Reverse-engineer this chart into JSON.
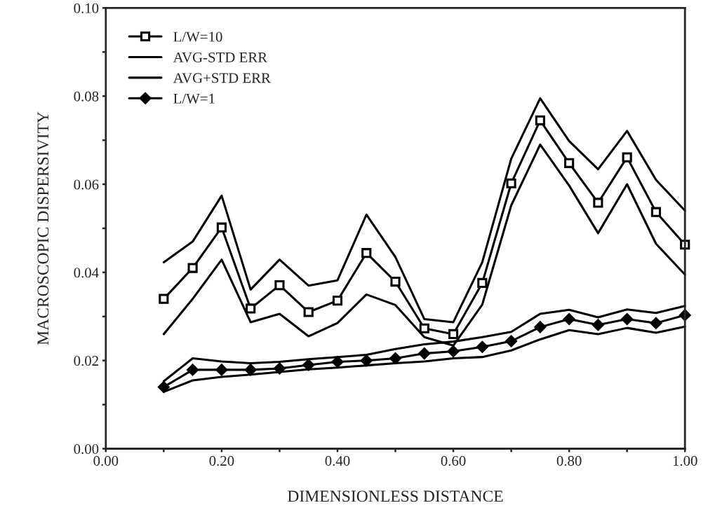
{
  "chart_data": {
    "type": "line",
    "xlabel": "DIMENSIONLESS DISTANCE",
    "ylabel": "MACROSCOPIC DISPERSIVITY",
    "x": [
      0.1,
      0.15,
      0.2,
      0.25,
      0.3,
      0.35,
      0.4,
      0.45,
      0.5,
      0.55,
      0.6,
      0.65,
      0.7,
      0.75,
      0.8,
      0.85,
      0.9,
      0.95,
      1.0
    ],
    "series": [
      {
        "name": "L/W=10",
        "color": "#000000",
        "marker": "square",
        "values": [
          0.034,
          0.041,
          0.0502,
          0.0318,
          0.0371,
          0.031,
          0.0336,
          0.0444,
          0.0379,
          0.0273,
          0.026,
          0.0376,
          0.0602,
          0.0745,
          0.0648,
          0.0558,
          0.0661,
          0.0537,
          0.0463
        ]
      },
      {
        "name": "AVG-STD ERR",
        "color": "#000000",
        "marker": "none",
        "values": [
          0.026,
          0.034,
          0.0429,
          0.0287,
          0.0306,
          0.0255,
          0.0285,
          0.035,
          0.0326,
          0.0253,
          0.0234,
          0.0327,
          0.0552,
          0.069,
          0.0597,
          0.0489,
          0.06,
          0.0465,
          0.0395
        ]
      },
      {
        "name": "AVG+STD ERR",
        "color": "#000000",
        "marker": "none",
        "values": [
          0.0423,
          0.047,
          0.0574,
          0.0361,
          0.0429,
          0.037,
          0.0382,
          0.0531,
          0.0435,
          0.0294,
          0.0287,
          0.0423,
          0.0658,
          0.0795,
          0.0698,
          0.0634,
          0.0721,
          0.061,
          0.054
        ]
      },
      {
        "name": "L/W=1",
        "color": "#000000",
        "marker": "diamond",
        "values": [
          0.014,
          0.0179,
          0.0179,
          0.0179,
          0.0182,
          0.019,
          0.0197,
          0.02,
          0.0205,
          0.0216,
          0.0221,
          0.0231,
          0.0244,
          0.0276,
          0.0294,
          0.0281,
          0.0294,
          0.0285,
          0.0303
        ]
      },
      {
        "color": "#000000",
        "marker": "none",
        "values": [
          0.0129,
          0.0155,
          0.0163,
          0.0168,
          0.0174,
          0.018,
          0.0184,
          0.0189,
          0.0194,
          0.0198,
          0.0205,
          0.0208,
          0.0223,
          0.0248,
          0.0269,
          0.026,
          0.0274,
          0.0263,
          0.0277
        ]
      },
      {
        "color": "#000000",
        "marker": "none",
        "values": [
          0.0153,
          0.0205,
          0.0198,
          0.0194,
          0.0197,
          0.0203,
          0.0208,
          0.0213,
          0.0226,
          0.0237,
          0.0243,
          0.0253,
          0.0265,
          0.0306,
          0.0315,
          0.0298,
          0.0316,
          0.0308,
          0.0324
        ]
      }
    ],
    "xlim": [
      0,
      1
    ],
    "ylim": [
      0,
      0.1
    ],
    "xticks": [
      {
        "value": 0,
        "label": "0.00"
      },
      {
        "value": 0.1,
        "label": null
      },
      {
        "value": 0.2,
        "label": "0.20"
      },
      {
        "value": 0.3,
        "label": null
      },
      {
        "value": 0.4,
        "label": "0.40"
      },
      {
        "value": 0.5,
        "label": null
      },
      {
        "value": 0.6,
        "label": "0.60"
      },
      {
        "value": 0.7,
        "label": null
      },
      {
        "value": 0.8,
        "label": "0.80"
      },
      {
        "value": 0.9,
        "label": null
      },
      {
        "value": 1.0,
        "label": "1.00"
      }
    ],
    "yticks": [
      {
        "value": 0,
        "label": "0.00"
      },
      {
        "value": 0.01,
        "label": null
      },
      {
        "value": 0.02,
        "label": "0.02"
      },
      {
        "value": 0.03,
        "label": null
      },
      {
        "value": 0.04,
        "label": "0.04"
      },
      {
        "value": 0.05,
        "label": null
      },
      {
        "value": 0.06,
        "label": "0.06"
      },
      {
        "value": 0.07,
        "label": null
      },
      {
        "value": 0.08,
        "label": "0.08"
      },
      {
        "value": 0.09,
        "label": null
      },
      {
        "value": 0.1,
        "label": "0.10"
      }
    ],
    "grid": false,
    "legend": "top left",
    "line_style": "solid"
  }
}
